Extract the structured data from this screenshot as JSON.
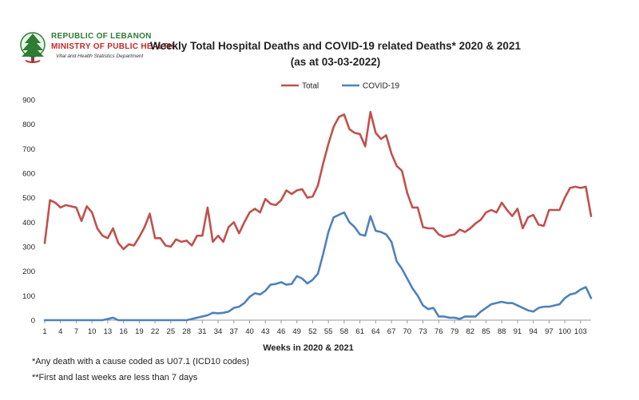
{
  "logo": {
    "line1": "REPUBLIC OF LEBANON",
    "line2": "MINISTRY OF PUBLIC HEALTH",
    "line3": "Vital and Health Statistics Department"
  },
  "footnotes": {
    "note1": "*Any death with a cause coded as  U07.1 (ICD10 codes)",
    "note2": "**First and last weeks are less than 7 days"
  },
  "colors": {
    "total": "#c0504d",
    "covid": "#4f81bd"
  },
  "chart_data": {
    "type": "line",
    "title": "Weekly Total Hospital Deaths and COVID-19 related Deaths* 2020 & 2021",
    "subtitle": "(as at 03-03-2022)",
    "xlabel": "Weeks in 2020 & 2021",
    "ylabel": "",
    "ylim": [
      0,
      900
    ],
    "yticks": [
      0,
      100,
      200,
      300,
      400,
      500,
      600,
      700,
      800,
      900
    ],
    "xticks": [
      1,
      4,
      7,
      10,
      13,
      16,
      19,
      22,
      25,
      28,
      31,
      34,
      37,
      40,
      43,
      46,
      49,
      52,
      55,
      58,
      61,
      64,
      67,
      70,
      73,
      76,
      79,
      82,
      85,
      88,
      91,
      94,
      97,
      100,
      103
    ],
    "x_range": [
      1,
      105
    ],
    "grid": false,
    "legend_position": "top-center",
    "series": [
      {
        "name": "Total",
        "color": "#c0504d",
        "values": [
          315,
          490,
          480,
          460,
          470,
          465,
          460,
          405,
          465,
          440,
          375,
          345,
          335,
          375,
          315,
          290,
          310,
          305,
          340,
          380,
          435,
          335,
          335,
          305,
          300,
          330,
          320,
          325,
          305,
          345,
          345,
          460,
          320,
          345,
          320,
          380,
          400,
          355,
          400,
          440,
          455,
          440,
          495,
          475,
          470,
          490,
          530,
          515,
          530,
          535,
          500,
          505,
          550,
          640,
          720,
          790,
          830,
          840,
          780,
          765,
          760,
          710,
          850,
          765,
          740,
          755,
          680,
          630,
          610,
          520,
          460,
          460,
          380,
          375,
          375,
          350,
          340,
          345,
          350,
          370,
          360,
          375,
          395,
          410,
          440,
          450,
          440,
          480,
          450,
          425,
          455,
          375,
          420,
          430,
          390,
          385,
          450,
          450,
          450,
          500,
          540,
          545,
          540,
          545,
          425
        ]
      },
      {
        "name": "COVID-19",
        "color": "#4f81bd",
        "values": [
          0,
          0,
          0,
          0,
          0,
          0,
          0,
          0,
          0,
          0,
          0,
          0,
          5,
          10,
          0,
          0,
          0,
          0,
          0,
          0,
          0,
          0,
          0,
          0,
          0,
          0,
          0,
          0,
          5,
          10,
          15,
          20,
          30,
          28,
          30,
          35,
          50,
          55,
          70,
          95,
          110,
          105,
          120,
          145,
          148,
          155,
          145,
          148,
          180,
          170,
          150,
          165,
          190,
          270,
          360,
          420,
          430,
          440,
          400,
          380,
          350,
          345,
          425,
          365,
          360,
          350,
          320,
          240,
          210,
          170,
          130,
          100,
          60,
          45,
          50,
          15,
          15,
          10,
          10,
          5,
          15,
          15,
          15,
          35,
          50,
          65,
          70,
          75,
          70,
          70,
          60,
          50,
          40,
          35,
          50,
          55,
          55,
          60,
          65,
          90,
          105,
          110,
          125,
          135,
          90
        ]
      }
    ]
  }
}
